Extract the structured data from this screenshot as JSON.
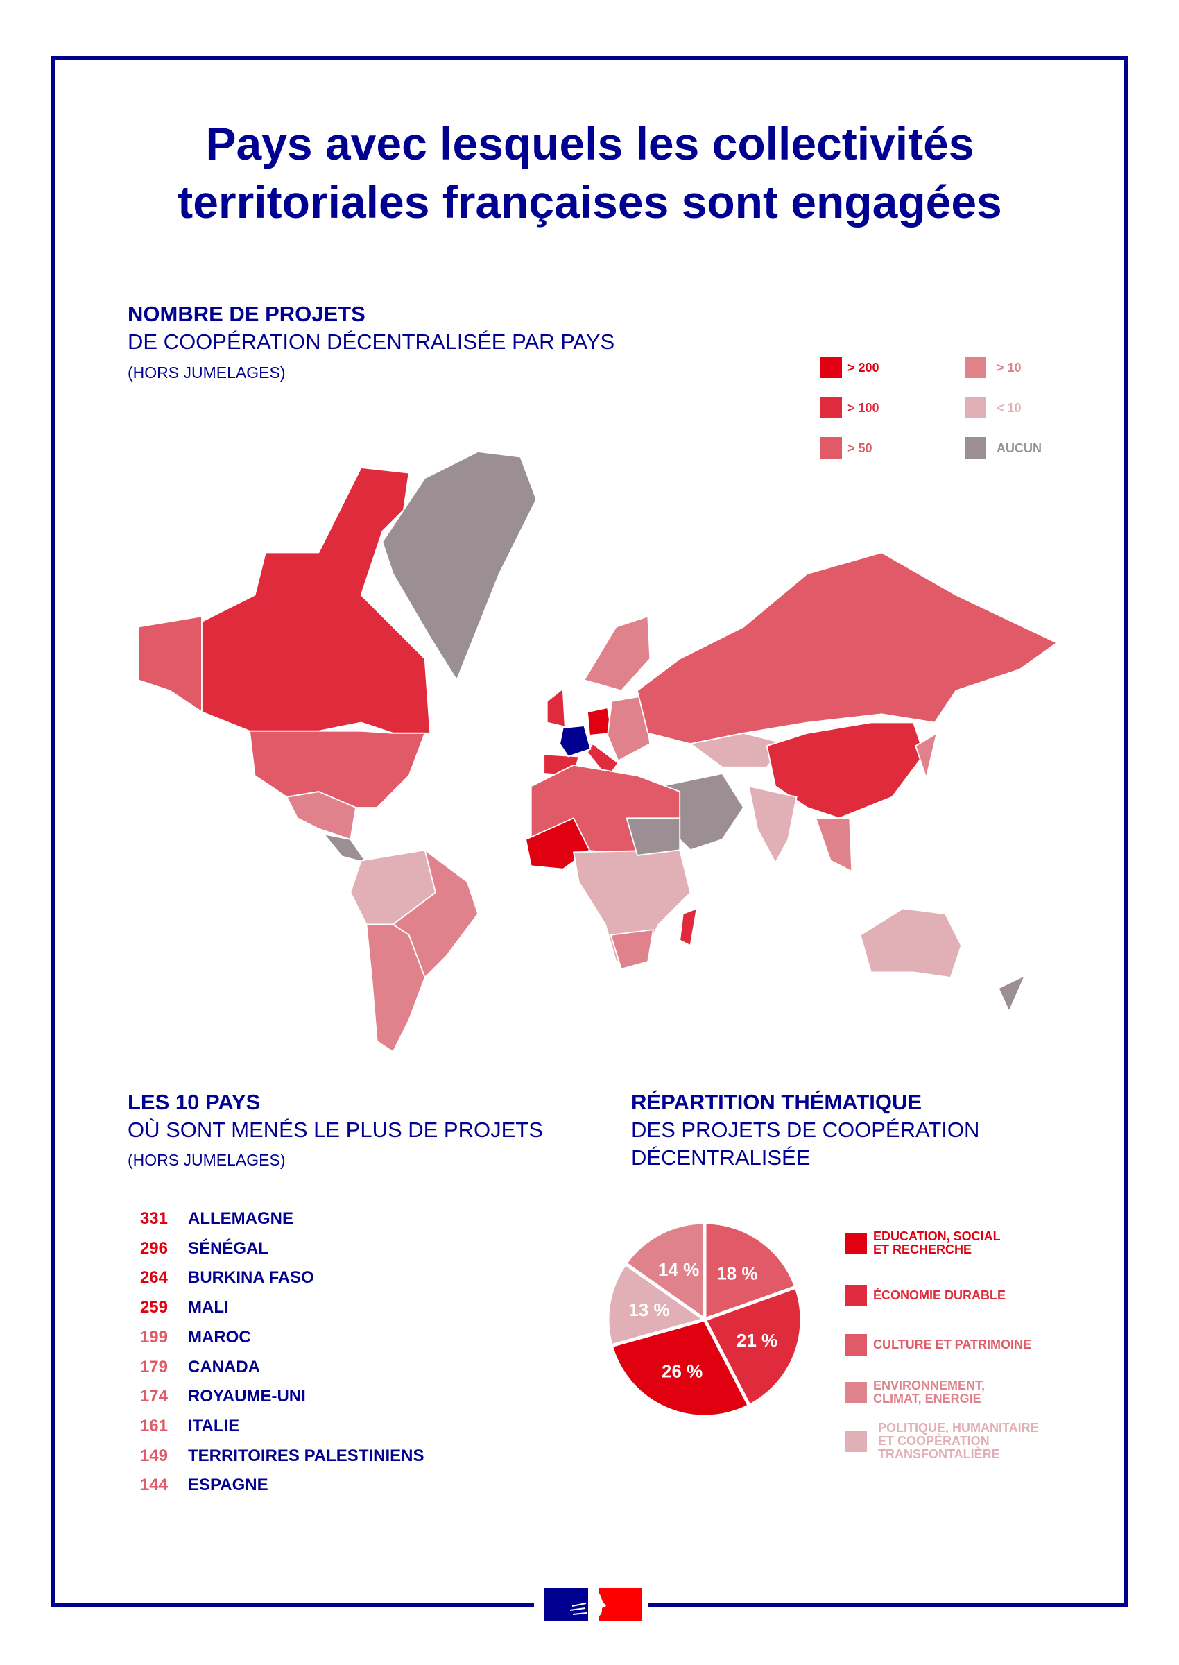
{
  "title": {
    "line1": "Pays avec lesquels les collectivités",
    "line2": "territoriales françaises sont engagées"
  },
  "map_section": {
    "heading": "NOMBRE DE PROJETS",
    "subheading": "DE COOPÉRATION DÉCENTRALISÉE PAR PAYS",
    "note": "(HORS JUMELAGES)",
    "legend": [
      {
        "label": "> 200",
        "color": "#e1000f"
      },
      {
        "label": "> 100",
        "color": "#e02b3c"
      },
      {
        "label": "> 50",
        "color": "#e05a67"
      },
      {
        "label": "> 10",
        "color": "#e0828c"
      },
      {
        "label": "< 10",
        "color": "#e0b0b6"
      },
      {
        "label": "AUCUN",
        "color": "#9b8f93"
      }
    ],
    "highlight_color": "#000091"
  },
  "top10": {
    "heading": "LES 10 PAYS",
    "subheading": "OÙ SONT MENÉS LE PLUS DE PROJETS",
    "note": "(HORS JUMELAGES)",
    "rows": [
      {
        "value": "331",
        "country": "ALLEMAGNE",
        "color": "#e1000f"
      },
      {
        "value": "296",
        "country": "SÉNÉGAL",
        "color": "#e1000f"
      },
      {
        "value": "264",
        "country": "BURKINA FASO",
        "color": "#e1000f"
      },
      {
        "value": "259",
        "country": "MALI",
        "color": "#e1000f"
      },
      {
        "value": "199",
        "country": "MAROC",
        "color": "#e05a67"
      },
      {
        "value": "179",
        "country": "CANADA",
        "color": "#e05a67"
      },
      {
        "value": "174",
        "country": "ROYAUME-UNI",
        "color": "#e05a67"
      },
      {
        "value": "161",
        "country": "ITALIE",
        "color": "#e05a67"
      },
      {
        "value": "149",
        "country": "TERRITOIRES PALESTINIENS",
        "color": "#e05a67"
      },
      {
        "value": "144",
        "country": "ESPAGNE",
        "color": "#e05a67"
      }
    ]
  },
  "chart_data": {
    "type": "pie",
    "title": "RÉPARTITION THÉMATIQUE",
    "subtitle": "DES PROJETS DE COOPÉRATION DÉCENTRALISÉE",
    "slices": [
      {
        "label": "CULTURE ET PATRIMOINE",
        "value": 18,
        "text": "18 %",
        "color": "#e05a67"
      },
      {
        "label": "ÉCONOMIE DURABLE",
        "value": 21,
        "text": "21 %",
        "color": "#e02b3c"
      },
      {
        "label": "EDUCATION, SOCIAL ET RECHERCHE",
        "value": 26,
        "text": "26 %",
        "color": "#e1000f"
      },
      {
        "label": "POLITIQUE, HUMANITAIRE ET COOPÉRATION TRANSFONTALIÈRE",
        "value": 13,
        "text": "13 %",
        "color": "#e0b0b6"
      },
      {
        "label": "ENVIRONNEMENT, CLIMAT, ENERGIE",
        "value": 14,
        "text": "14 %",
        "color": "#e0828c"
      }
    ],
    "legend": [
      {
        "line1": "EDUCATION, SOCIAL",
        "line2": "ET RECHERCHE",
        "line3": "",
        "color": "#e1000f"
      },
      {
        "line1": "ÉCONOMIE DURABLE",
        "line2": "",
        "line3": "",
        "color": "#e02b3c"
      },
      {
        "line1": "CULTURE ET PATRIMOINE",
        "line2": "",
        "line3": "",
        "color": "#e05a67"
      },
      {
        "line1": "ENVIRONNEMENT,",
        "line2": "CLIMAT, ENERGIE",
        "line3": "",
        "color": "#e0828c"
      },
      {
        "line1": "POLITIQUE, HUMANITAIRE",
        "line2": "ET COOPÉRATION",
        "line3": "TRANSFONTALIÈRE",
        "color": "#e0b0b6"
      }
    ]
  }
}
